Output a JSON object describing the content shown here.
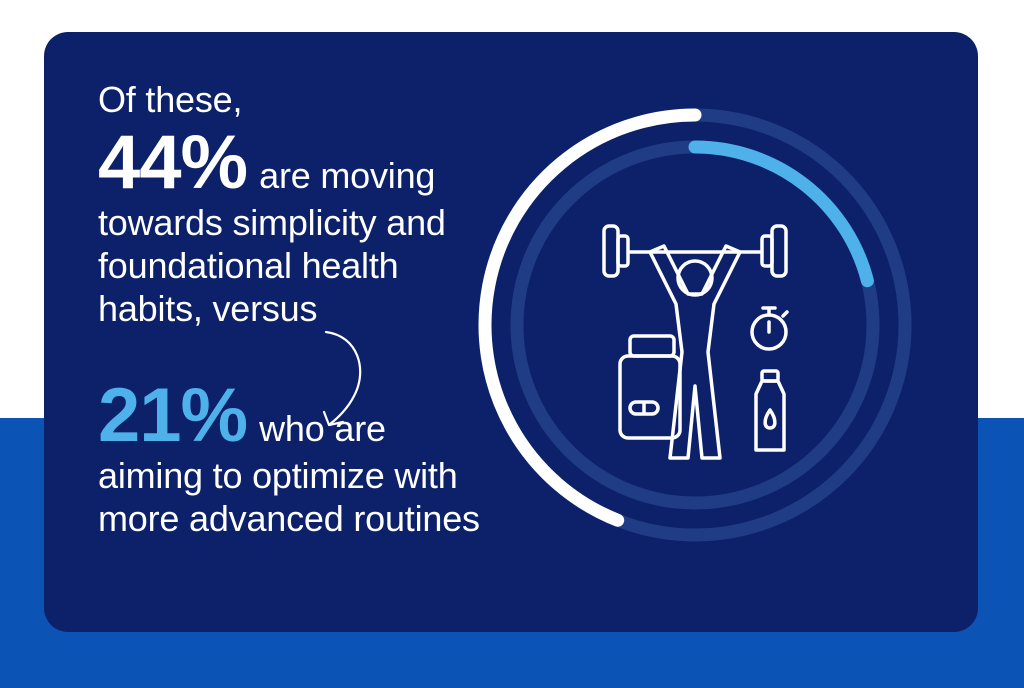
{
  "intro": "Of these,",
  "stat1": {
    "value": "44%",
    "lines": [
      "are moving",
      "towards simplicity and",
      "foundational health",
      "habits, versus"
    ]
  },
  "stat2": {
    "value": "21%",
    "lines": [
      "who are",
      "aiming to optimize with",
      "more advanced routines"
    ]
  },
  "ring": {
    "outer_fraction": 0.44,
    "inner_fraction": 0.21
  },
  "colors": {
    "card": "#0c2169",
    "band": "#0b53b4",
    "accent": "#4eb1ea",
    "text": "#ffffff"
  },
  "icons": [
    "curved-arrow-icon",
    "weightlifter-icon",
    "supplement-jar-icon",
    "stopwatch-icon",
    "water-bottle-icon"
  ]
}
